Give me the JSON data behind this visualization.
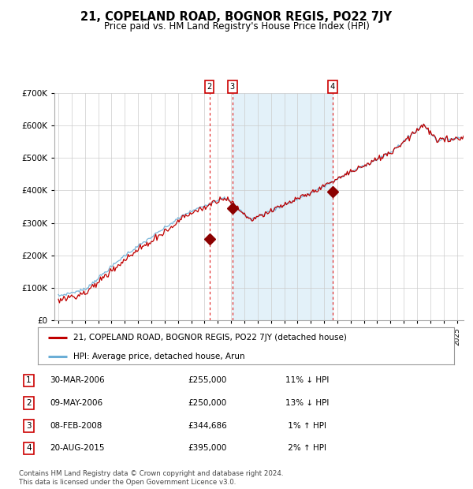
{
  "title": "21, COPELAND ROAD, BOGNOR REGIS, PO22 7JY",
  "subtitle": "Price paid vs. HM Land Registry's House Price Index (HPI)",
  "legend_house": "21, COPELAND ROAD, BOGNOR REGIS, PO22 7JY (detached house)",
  "legend_hpi": "HPI: Average price, detached house, Arun",
  "footnote": "Contains HM Land Registry data © Crown copyright and database right 2024.\nThis data is licensed under the Open Government Licence v3.0.",
  "transactions": [
    {
      "num": 1,
      "date": "30-MAR-2006",
      "price": 255000,
      "pct": "11%",
      "dir": "↓"
    },
    {
      "num": 2,
      "date": "09-MAY-2006",
      "price": 250000,
      "pct": "13%",
      "dir": "↓"
    },
    {
      "num": 3,
      "date": "08-FEB-2008",
      "price": 344686,
      "pct": "1%",
      "dir": "↑"
    },
    {
      "num": 4,
      "date": "20-AUG-2015",
      "price": 395000,
      "pct": "2%",
      "dir": "↑"
    }
  ],
  "t1_x": 2006.25,
  "t2_x": 2006.37,
  "t3_x": 2008.1,
  "t4_x": 2015.64,
  "t2_price": 250000,
  "t3_price": 344686,
  "t4_price": 395000,
  "shade_x1": 2008.1,
  "shade_x2": 2015.64,
  "hpi_color": "#6baed6",
  "house_color": "#c00000",
  "marker_color": "#8b0000",
  "background_color": "#ffffff",
  "grid_color": "#cccccc",
  "ylim": [
    0,
    700000
  ],
  "yticks": [
    0,
    100000,
    200000,
    300000,
    400000,
    500000,
    600000,
    700000
  ],
  "xlim_start": 1994.7,
  "xlim_end": 2025.5,
  "table_rows": [
    [
      1,
      "30-MAR-2006",
      "£255,000",
      "11% ↓ HPI"
    ],
    [
      2,
      "09-MAY-2006",
      "£250,000",
      "13% ↓ HPI"
    ],
    [
      3,
      "08-FEB-2008",
      "£344,686",
      " 1% ↑ HPI"
    ],
    [
      4,
      "20-AUG-2015",
      "£395,000",
      " 2% ↑ HPI"
    ]
  ]
}
